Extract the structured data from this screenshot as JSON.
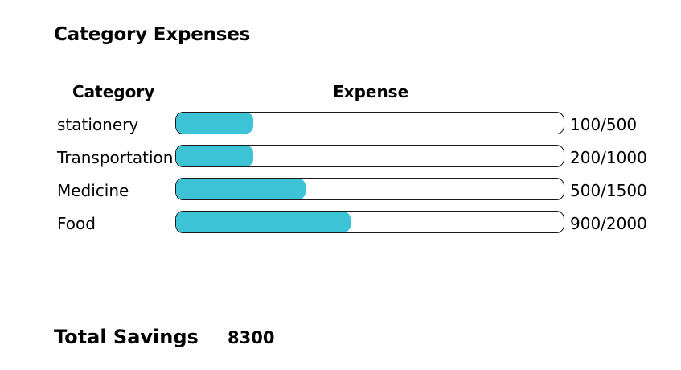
{
  "title": "Category Expenses",
  "table": {
    "headers": {
      "category": "Category",
      "expense": "Expense"
    },
    "rows": [
      {
        "category": "stationery",
        "amount": "100/500",
        "fill_fraction": 0.2
      },
      {
        "category": "Transportation",
        "amount": "200/1000",
        "fill_fraction": 0.2
      },
      {
        "category": "Medicine",
        "amount": "500/1500",
        "fill_fraction": 0.333
      },
      {
        "category": "Food",
        "amount": "900/2000",
        "fill_fraction": 0.45
      }
    ]
  },
  "savings": {
    "label": "Total Savings",
    "value": "8300"
  },
  "colors": {
    "bar_fill": "#3cc3d6",
    "bar_border": "#1a1a1a"
  }
}
